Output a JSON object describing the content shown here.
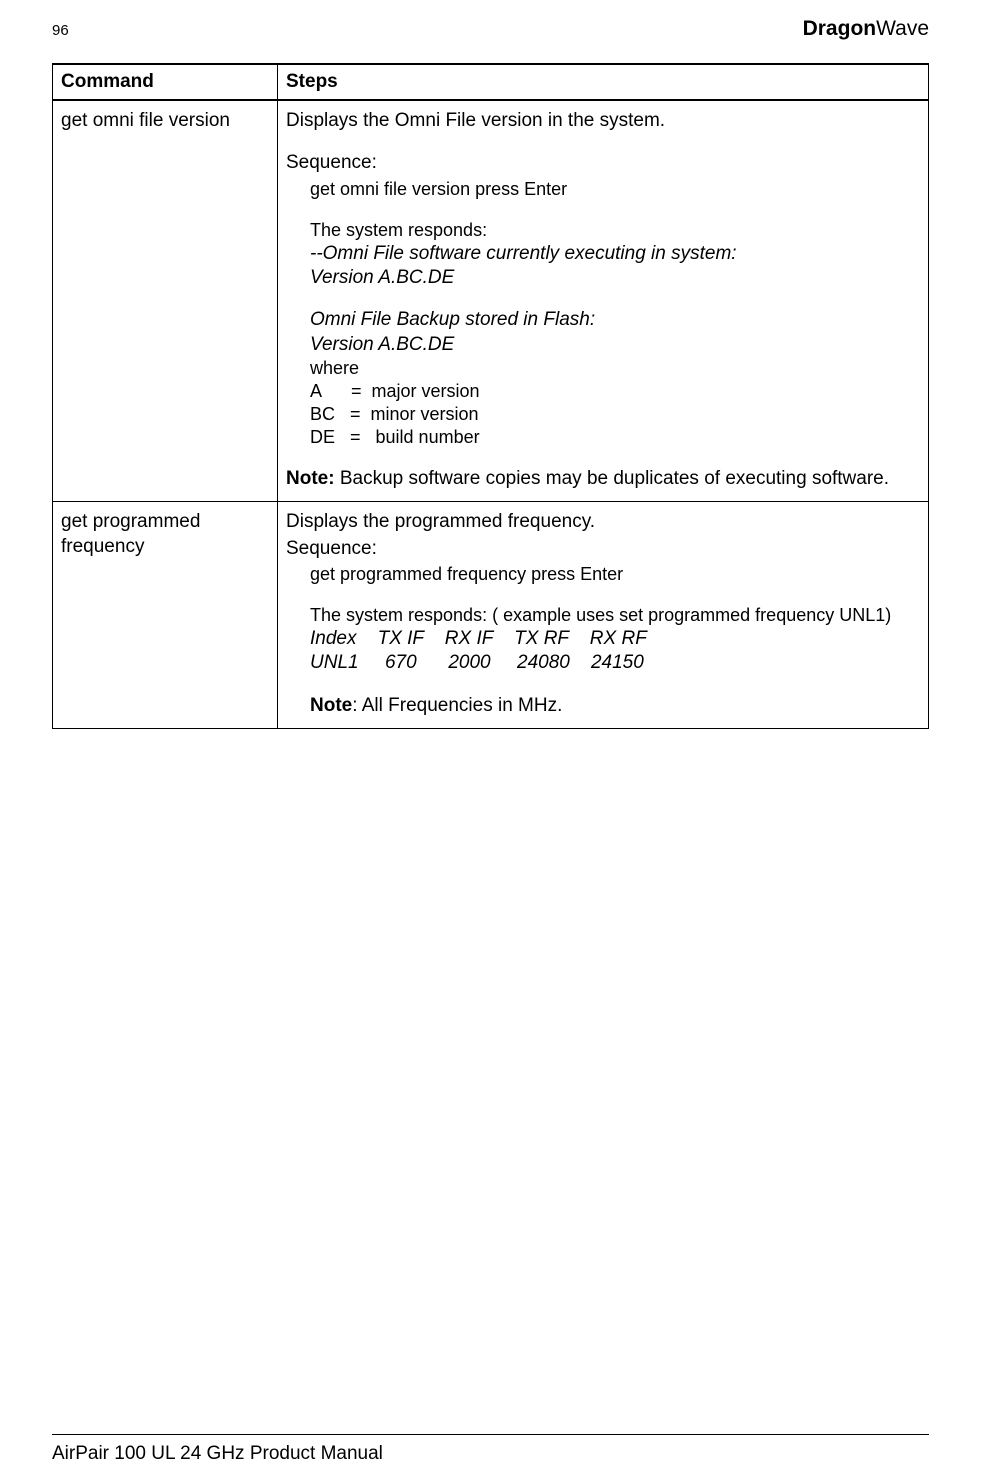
{
  "header": {
    "page_number": "96",
    "brand_bold": "Dragon",
    "brand_light": "Wave"
  },
  "table": {
    "headers": {
      "col1": "Command",
      "col2": "Steps"
    },
    "rows": [
      {
        "command": "get omni file version",
        "desc": "Displays the Omni File version in the system.",
        "seq_label": "Sequence:",
        "seq_line": "get omni file version press Enter",
        "resp_label": "The system responds:",
        "resp_l1": "--Omni File software currently executing in system:",
        "resp_l2": "Version A.BC.DE",
        "resp_l3": "Omni File Backup stored in Flash:",
        "resp_l4": "Version A.BC.DE",
        "where_label": "where",
        "where_a": "A      =  major version",
        "where_bc": "BC   =  minor version",
        "where_de": "DE   =   build number",
        "note_label": "Note:",
        "note_text": " Backup software copies may be duplicates of executing software."
      },
      {
        "command": "get programmed frequency",
        "desc": "Displays the programmed frequency.",
        "seq_label": "Sequence:",
        "seq_line": "get programmed frequency press Enter",
        "resp_label": "The system responds: ( example uses set programmed frequency UNL1)",
        "data_header": "Index    TX IF    RX IF    TX RF    RX RF",
        "data_row": "UNL1     670      2000     24080    24150",
        "note_label": "Note",
        "note_text": ": All Frequencies in MHz."
      }
    ]
  },
  "footer": {
    "text": "AirPair 100 UL 24 GHz Product Manual"
  },
  "colors": {
    "text": "#000000",
    "bg": "#ffffff",
    "border": "#000000"
  }
}
